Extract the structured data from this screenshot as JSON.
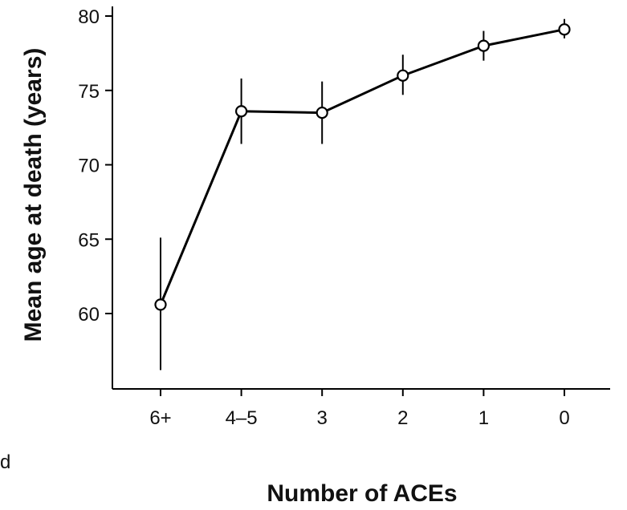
{
  "chart_data": {
    "type": "line",
    "title": "",
    "xlabel": "Number of ACEs",
    "ylabel": "Mean age at death (years)",
    "categories": [
      "6+",
      "4–5",
      "3",
      "2",
      "1",
      "0"
    ],
    "series": [
      {
        "values": [
          60.6,
          73.6,
          73.5,
          76.0,
          78.0,
          79.1
        ],
        "error_low": [
          56.2,
          71.4,
          71.4,
          74.7,
          77.0,
          78.5
        ],
        "error_high": [
          65.1,
          75.8,
          75.6,
          77.4,
          79.0,
          79.8
        ]
      }
    ],
    "yticks": [
      60,
      65,
      70,
      75,
      80
    ],
    "ylim": [
      55,
      81
    ],
    "grid": false,
    "legend": "none",
    "colors": {
      "line": "#000000",
      "marker_fill": "#ffffff"
    }
  },
  "page": {
    "stray_text": "d"
  }
}
